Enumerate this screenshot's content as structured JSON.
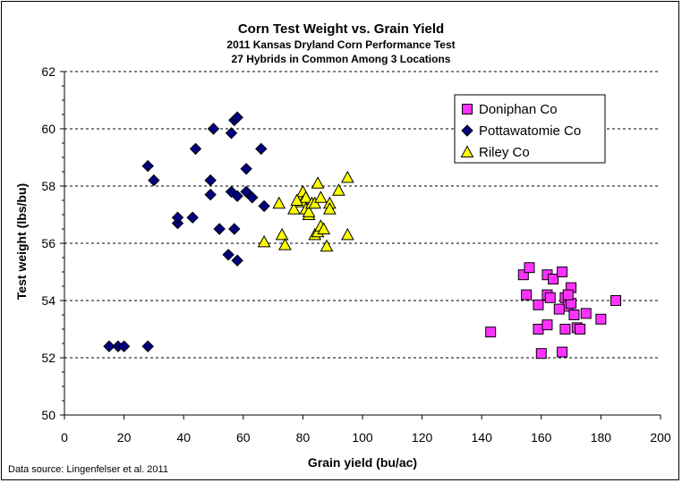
{
  "chart_data": {
    "type": "scatter",
    "title": "Corn Test Weight vs. Grain Yield",
    "subtitle_lines": [
      "2011 Kansas Dryland Corn Performance Test",
      "27 Hybrids in Common Among 3 Locations"
    ],
    "xlabel": "Grain yield (bu/ac)",
    "ylabel": "Test weight (lbs/bu)",
    "xlim": [
      0,
      200
    ],
    "ylim": [
      50,
      62
    ],
    "x_ticks": [
      0,
      20,
      40,
      60,
      80,
      100,
      120,
      140,
      160,
      180,
      200
    ],
    "y_ticks": [
      50,
      52,
      54,
      56,
      58,
      60,
      62
    ],
    "grid": "horizontal dashed",
    "legend_position": "top-right",
    "source_note": "Data source: Lingenfelser et al. 2011",
    "series": [
      {
        "name": "Doniphan Co",
        "marker": "square",
        "color": "#ff33ff",
        "points": [
          [
            143,
            52.9
          ],
          [
            154,
            54.9
          ],
          [
            155,
            54.2
          ],
          [
            156,
            55.15
          ],
          [
            159,
            53.0
          ],
          [
            159,
            53.85
          ],
          [
            160,
            52.15
          ],
          [
            162,
            53.15
          ],
          [
            162,
            54.2
          ],
          [
            162,
            54.9
          ],
          [
            163,
            54.1
          ],
          [
            164,
            54.75
          ],
          [
            167,
            55.0
          ],
          [
            167,
            52.2
          ],
          [
            168,
            53.0
          ],
          [
            168,
            54.1
          ],
          [
            169,
            53.8
          ],
          [
            170,
            54.45
          ],
          [
            170,
            53.9
          ],
          [
            171,
            53.5
          ],
          [
            172,
            53.05
          ],
          [
            173,
            53.0
          ],
          [
            175,
            53.55
          ],
          [
            180,
            53.35
          ],
          [
            185,
            54.0
          ],
          [
            169,
            54.2
          ],
          [
            166,
            53.7
          ]
        ]
      },
      {
        "name": "Pottawatomie Co",
        "marker": "diamond",
        "color": "#000080",
        "points": [
          [
            15,
            52.4
          ],
          [
            18,
            52.4
          ],
          [
            20,
            52.4
          ],
          [
            28,
            52.4
          ],
          [
            28,
            58.7
          ],
          [
            30,
            58.2
          ],
          [
            38,
            56.7
          ],
          [
            38,
            56.9
          ],
          [
            43,
            56.9
          ],
          [
            44,
            59.3
          ],
          [
            49,
            57.7
          ],
          [
            49,
            58.2
          ],
          [
            50,
            60.0
          ],
          [
            52,
            56.5
          ],
          [
            55,
            55.6
          ],
          [
            56,
            59.85
          ],
          [
            56,
            57.8
          ],
          [
            57,
            60.3
          ],
          [
            57,
            56.5
          ],
          [
            58,
            55.4
          ],
          [
            58,
            60.4
          ],
          [
            58,
            57.65
          ],
          [
            61,
            58.6
          ],
          [
            61,
            57.8
          ],
          [
            63,
            57.6
          ],
          [
            66,
            59.3
          ],
          [
            67,
            57.3
          ]
        ]
      },
      {
        "name": "Riley Co",
        "marker": "triangle",
        "color": "#ffff00",
        "points": [
          [
            67,
            56.05
          ],
          [
            72,
            57.4
          ],
          [
            73,
            56.3
          ],
          [
            74,
            55.95
          ],
          [
            77,
            57.2
          ],
          [
            79,
            57.6
          ],
          [
            80,
            57.8
          ],
          [
            80,
            57.45
          ],
          [
            81,
            57.2
          ],
          [
            81,
            57.6
          ],
          [
            82,
            57.0
          ],
          [
            82,
            57.1
          ],
          [
            83,
            57.4
          ],
          [
            84,
            56.3
          ],
          [
            84,
            57.4
          ],
          [
            85,
            58.1
          ],
          [
            85,
            56.4
          ],
          [
            86,
            56.6
          ],
          [
            86,
            57.6
          ],
          [
            87,
            56.5
          ],
          [
            88,
            55.9
          ],
          [
            89,
            57.4
          ],
          [
            89,
            57.2
          ],
          [
            92,
            57.85
          ],
          [
            95,
            56.3
          ],
          [
            95,
            58.3
          ],
          [
            78,
            57.5
          ]
        ]
      }
    ]
  }
}
